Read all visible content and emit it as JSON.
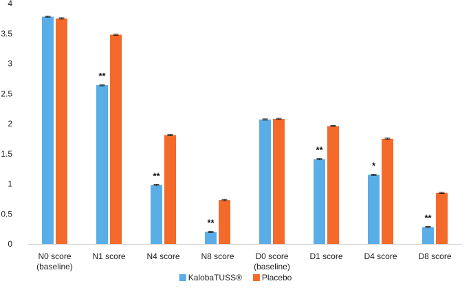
{
  "chart_data": {
    "type": "bar",
    "title": "",
    "xlabel": "",
    "ylabel": "",
    "ylim": [
      0,
      4
    ],
    "yticks": [
      0,
      0.5,
      1,
      1.5,
      2,
      2.5,
      3,
      3.5,
      4
    ],
    "grid": false,
    "legend_position": "bottom-center",
    "categories": [
      [
        "N0 score",
        "(baseline)"
      ],
      [
        "N1 score"
      ],
      [
        "N4 score"
      ],
      [
        "N8 score"
      ],
      [
        "D0 score",
        "(baseline)"
      ],
      [
        "D1 score"
      ],
      [
        "D4 score"
      ],
      [
        "D8 score"
      ]
    ],
    "series": [
      {
        "name": "KalobaTUSS®",
        "color": "#5aaee8",
        "values": [
          3.78,
          2.64,
          0.98,
          0.2,
          2.07,
          1.41,
          1.15,
          0.28
        ],
        "errors": [
          0.01,
          0.01,
          0.01,
          0.01,
          0.01,
          0.01,
          0.01,
          0.01
        ]
      },
      {
        "name": "Placebo",
        "color": "#f46a2a",
        "values": [
          3.75,
          3.48,
          1.81,
          0.73,
          2.08,
          1.96,
          1.75,
          0.85
        ],
        "errors": [
          0.01,
          0.01,
          0.01,
          0.01,
          0.01,
          0.01,
          0.01,
          0.01
        ]
      }
    ],
    "annotations": [
      {
        "category_index": 1,
        "series_index": 0,
        "text": "**"
      },
      {
        "category_index": 2,
        "series_index": 0,
        "text": "**"
      },
      {
        "category_index": 3,
        "series_index": 0,
        "text": "**"
      },
      {
        "category_index": 5,
        "series_index": 0,
        "text": "**"
      },
      {
        "category_index": 6,
        "series_index": 0,
        "text": "*"
      },
      {
        "category_index": 7,
        "series_index": 0,
        "text": "**"
      }
    ]
  }
}
